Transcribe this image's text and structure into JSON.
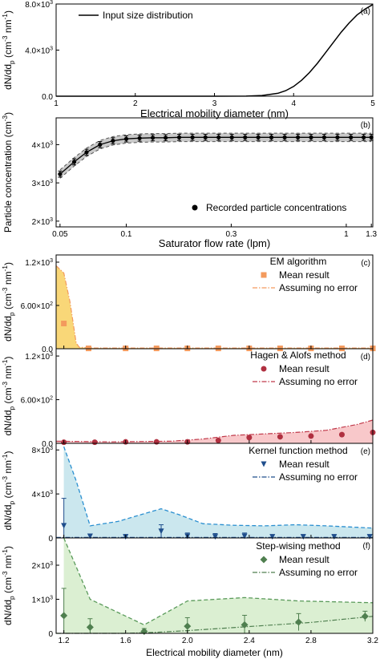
{
  "chart_data": [
    {
      "id": "a",
      "type": "line",
      "panel_label": "(a)",
      "xlabel": "Electrical mobility diameter (nm)",
      "ylabel": "dN/dd_p (cm^-3 nm^-1)",
      "xlim": [
        1,
        5
      ],
      "ylim": [
        0,
        8000
      ],
      "x_ticks": [
        1,
        2,
        3,
        4,
        5
      ],
      "y_ticks": [
        {
          "value": 0,
          "label": "0.0"
        },
        {
          "value": 4000,
          "label": "4.0x10^3"
        },
        {
          "value": 8000,
          "label": "8.0x10^3"
        }
      ],
      "legend": {
        "position": "top-left"
      },
      "series": [
        {
          "name": "Input size distribution",
          "style": "solid",
          "x": [
            1,
            2,
            3,
            3.4,
            3.6,
            3.8,
            3.9,
            4.0,
            4.1,
            4.2,
            4.3,
            4.4,
            4.5,
            4.6,
            4.7,
            4.8,
            4.9,
            5.0
          ],
          "y": [
            0,
            0,
            0,
            5,
            60,
            250,
            480,
            850,
            1380,
            2050,
            2850,
            3750,
            4650,
            5550,
            6350,
            7050,
            7550,
            7950
          ]
        }
      ]
    },
    {
      "id": "b",
      "type": "scatter",
      "panel_label": "(b)",
      "xlabel": "Saturator flow rate (lpm)",
      "ylabel": "Particle concentration (cm^-3)",
      "xscale": "log",
      "xlim": [
        0.048,
        1.32
      ],
      "ylim": [
        1850,
        4700
      ],
      "x_ticks": [
        {
          "value": 0.05,
          "label": "0.05"
        },
        {
          "value": 0.1,
          "label": "0.1"
        },
        {
          "value": 0.3,
          "label": "0.3"
        },
        {
          "value": 1,
          "label": "1"
        },
        {
          "value": 1.3,
          "label": "1.3"
        }
      ],
      "y_ticks": [
        {
          "value": 2000,
          "label": "2x10^3"
        },
        {
          "value": 3000,
          "label": "3x10^3"
        },
        {
          "value": 4000,
          "label": "4x10^3"
        }
      ],
      "legend": {
        "position": "bottom-right"
      },
      "series": [
        {
          "name": "Recorded particle concentrations",
          "x": [
            0.05,
            0.058,
            0.066,
            0.076,
            0.087,
            0.1,
            0.115,
            0.132,
            0.151,
            0.174,
            0.2,
            0.229,
            0.263,
            0.302,
            0.347,
            0.398,
            0.457,
            0.525,
            0.603,
            0.692,
            0.794,
            0.912,
            1.05,
            1.2,
            1.3
          ],
          "y": [
            3230,
            3550,
            3800,
            4000,
            4100,
            4150,
            4170,
            4180,
            4180,
            4190,
            4190,
            4190,
            4190,
            4190,
            4190,
            4190,
            4190,
            4190,
            4190,
            4190,
            4190,
            4190,
            4190,
            4190,
            4190
          ],
          "err": 80
        }
      ]
    },
    {
      "id": "c",
      "type": "area",
      "panel_label": "(c)",
      "method": "EM algorithm",
      "xlim": [
        1.15,
        3.2
      ],
      "ylim": [
        0,
        1300
      ],
      "y_ticks": [
        {
          "value": 0,
          "label": "0.0"
        },
        {
          "value": 600,
          "label": "6.00x10^2"
        },
        {
          "value": 1200,
          "label": "1.2x10^3"
        }
      ],
      "fill_color": "#f7c94b",
      "line_color": "#f39a5d",
      "series": [
        {
          "name": "Mean result",
          "marker": "square",
          "color": "#f39a5d",
          "x": [
            1.2,
            1.36,
            1.6,
            1.8,
            2.0,
            2.2,
            2.4,
            2.6,
            2.8,
            3.0,
            3.2
          ],
          "y": [
            350,
            5,
            5,
            5,
            5,
            5,
            5,
            5,
            5,
            5,
            5
          ]
        },
        {
          "name": "Assuming no error",
          "style": "dash-dot",
          "color": "#f39a5d",
          "x": [
            1.15,
            1.2,
            1.24,
            1.28,
            1.3,
            1.4,
            1.8,
            2.4,
            3.2
          ],
          "y": [
            1150,
            1050,
            650,
            80,
            20,
            10,
            10,
            10,
            10
          ]
        }
      ]
    },
    {
      "id": "d",
      "type": "area",
      "panel_label": "(d)",
      "method": "Hagen & Alofs method",
      "xlim": [
        1.15,
        3.2
      ],
      "ylim": [
        0,
        1300
      ],
      "y_ticks": [
        {
          "value": 0,
          "label": "0.0"
        },
        {
          "value": 600,
          "label": "6.00x10^2"
        },
        {
          "value": 1200,
          "label": "1.2x10^3"
        }
      ],
      "fill_color": "#f5b5b8",
      "line_color": "#c0394a",
      "series": [
        {
          "name": "Mean result",
          "marker": "circle",
          "color": "#b03040",
          "x": [
            1.2,
            1.4,
            1.6,
            1.8,
            2.0,
            2.2,
            2.4,
            2.6,
            2.8,
            3.0,
            3.2
          ],
          "y": [
            15,
            15,
            20,
            20,
            20,
            40,
            80,
            90,
            100,
            120,
            150
          ]
        },
        {
          "name": "Assuming no error",
          "style": "dash-dot",
          "color": "#c0394a",
          "x": [
            1.15,
            1.3,
            1.5,
            1.7,
            1.9,
            2.1,
            2.3,
            2.5,
            2.7,
            2.9,
            3.1,
            3.2
          ],
          "y": [
            30,
            25,
            20,
            25,
            30,
            60,
            110,
            130,
            150,
            180,
            260,
            320
          ]
        }
      ]
    },
    {
      "id": "e",
      "type": "area",
      "panel_label": "(e)",
      "method": "Kernel function method",
      "xlim": [
        1.15,
        3.2
      ],
      "ylim": [
        0,
        8600
      ],
      "y_ticks": [
        {
          "value": 0,
          "label": "0"
        },
        {
          "value": 4000,
          "label": "4x10^3"
        },
        {
          "value": 8000,
          "label": "8x10^3"
        }
      ],
      "fill_color": "#b9dfe8",
      "line_color": "#2a8fd0",
      "series": [
        {
          "name": "Mean result",
          "marker": "triangle-down",
          "color": "#1f4e8c",
          "x": [
            1.2,
            1.37,
            1.6,
            1.83,
            2.0,
            2.18,
            2.37,
            2.55,
            2.75,
            2.95,
            3.18
          ],
          "y": [
            1100,
            150,
            100,
            600,
            150,
            100,
            150,
            100,
            100,
            100,
            100
          ],
          "err": [
            2500,
            200,
            200,
            600,
            300,
            300,
            300,
            200,
            200,
            200,
            200
          ]
        },
        {
          "name": "Assuming no error",
          "style": "dash-dot",
          "color": "#1f4e8c",
          "x": [
            1.15,
            1.3,
            1.4,
            1.55,
            1.7,
            1.85,
            2.0,
            2.2,
            2.4,
            2.6,
            2.8,
            3.0,
            3.2
          ],
          "y": [
            50,
            50,
            50,
            50,
            50,
            50,
            50,
            50,
            50,
            50,
            50,
            50,
            50
          ]
        },
        {
          "name": "",
          "style": "dashed",
          "color": "#2a8fd0",
          "x": [
            1.2,
            1.28,
            1.37,
            1.55,
            1.72,
            1.83,
            1.95,
            2.1,
            2.3,
            2.5,
            2.7,
            2.9,
            3.2
          ],
          "y": [
            8300,
            5200,
            1100,
            1500,
            2200,
            2650,
            2100,
            1300,
            1150,
            1100,
            1200,
            1100,
            900
          ]
        }
      ]
    },
    {
      "id": "f",
      "type": "area",
      "panel_label": "(f)",
      "method": "Step-wising method",
      "xlabel": "Electrical mobility diameter (nm)",
      "xlim": [
        1.15,
        3.2
      ],
      "ylim": [
        0,
        2800
      ],
      "x_ticks": [
        1.2,
        1.6,
        2.0,
        2.4,
        2.8,
        3.2
      ],
      "y_ticks": [
        {
          "value": 0,
          "label": "0"
        },
        {
          "value": 1000,
          "label": "1x10^3"
        },
        {
          "value": 2000,
          "label": "2x10^3"
        }
      ],
      "fill_color": "#cfe9c3",
      "line_color": "#5a9a5a",
      "series": [
        {
          "name": "Mean result",
          "marker": "diamond",
          "color": "#4f7f4f",
          "x": [
            1.2,
            1.37,
            1.72,
            2.0,
            2.37,
            2.72,
            3.15
          ],
          "y": [
            520,
            180,
            60,
            210,
            250,
            330,
            500
          ],
          "err": [
            800,
            250,
            80,
            250,
            280,
            250,
            150
          ]
        },
        {
          "name": "Assuming no error",
          "style": "dash-dot",
          "color": "#4f7f4f",
          "x": [
            1.15,
            1.3,
            1.6,
            1.8,
            2.0,
            2.4,
            2.8,
            3.2
          ],
          "y": [
            0,
            0,
            0,
            30,
            80,
            200,
            320,
            500
          ]
        },
        {
          "name": "",
          "style": "dashed",
          "color": "#5a9a5a",
          "x": [
            1.2,
            1.37,
            1.72,
            2.0,
            2.37,
            2.72,
            3.2
          ],
          "y": [
            2800,
            1000,
            250,
            950,
            1050,
            950,
            900
          ]
        }
      ]
    }
  ]
}
